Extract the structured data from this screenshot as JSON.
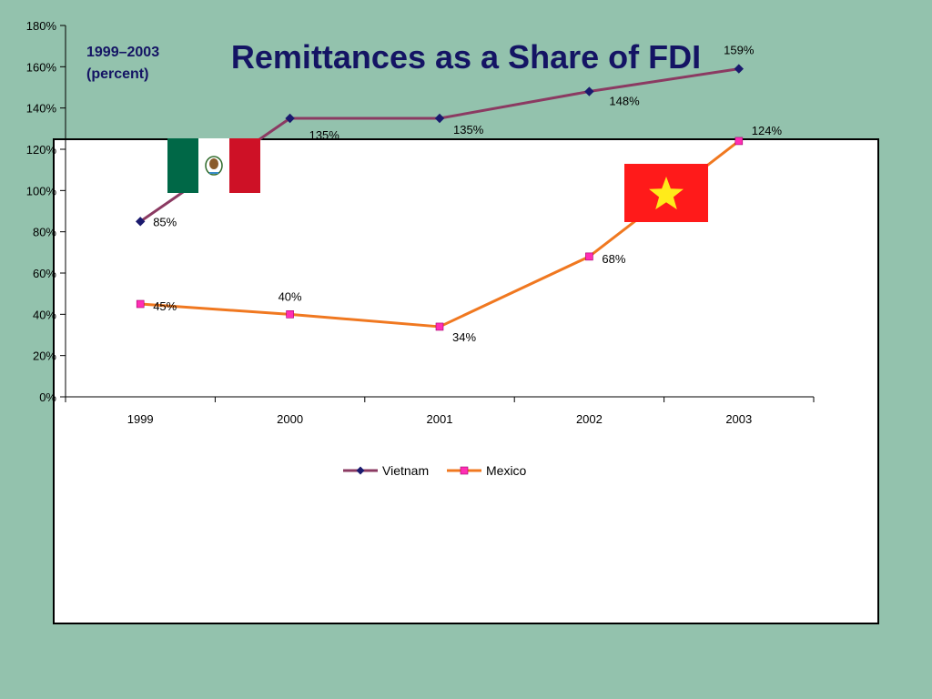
{
  "slide": {
    "title": "Remittances as a Share of FDI"
  },
  "chart_data": {
    "type": "line",
    "title": "",
    "inset_label": [
      "1999–2003",
      "(percent)"
    ],
    "categories": [
      "1999",
      "2000",
      "2001",
      "2002",
      "2003"
    ],
    "ylim": [
      0,
      180
    ],
    "y_ticks": [
      "0%",
      "20%",
      "40%",
      "60%",
      "80%",
      "100%",
      "120%",
      "140%",
      "160%",
      "180%"
    ],
    "y_tick_values": [
      0,
      20,
      40,
      60,
      80,
      100,
      120,
      140,
      160,
      180
    ],
    "grid": false,
    "legend": "bottom",
    "series": [
      {
        "name": "Vietnam",
        "values": [
          85,
          135,
          135,
          148,
          159
        ],
        "labels": [
          "85%",
          "135%",
          "135%",
          "148%",
          "159%"
        ],
        "color": "#8b3a62",
        "marker": "diamond",
        "marker_color": "#1a1a6e"
      },
      {
        "name": "Mexico",
        "values": [
          45,
          40,
          34,
          68,
          124
        ],
        "labels": [
          "45%",
          "40%",
          "34%",
          "68%",
          "124%"
        ],
        "color": "#f07820",
        "marker": "square",
        "marker_color": "#ff2eb4"
      }
    ],
    "images": [
      {
        "name": "mexico-flag",
        "colors": [
          "#006847",
          "#ffffff",
          "#ce1126"
        ]
      },
      {
        "name": "vietnam-flag",
        "colors": [
          "#ff1a1a",
          "#ffeb1a"
        ]
      }
    ]
  }
}
